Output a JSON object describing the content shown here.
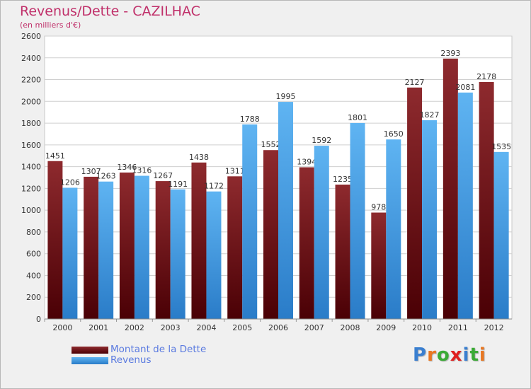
{
  "title": "Revenus/Dette - CAZILHAC",
  "subtitle": "(en milliers d'€)",
  "logo": {
    "text": "Proxiti",
    "letter_colors": [
      "#3a7fd0",
      "#e87722",
      "#3aaa35",
      "#e02020",
      "#3a7fd0",
      "#3aaa35",
      "#e87722"
    ]
  },
  "legend": {
    "debt_label": "Montant de la Dette",
    "revenue_label": "Revenus"
  },
  "chart_data": {
    "type": "bar",
    "title": "Revenus/Dette - CAZILHAC",
    "ylabel": "(en milliers d'€)",
    "xlabel": "",
    "categories": [
      "2000",
      "2001",
      "2002",
      "2003",
      "2004",
      "2005",
      "2006",
      "2007",
      "2008",
      "2009",
      "2010",
      "2011",
      "2012"
    ],
    "series": [
      {
        "name": "Montant de la Dette",
        "color": "#7a1a1e",
        "values": [
          1451,
          1307,
          1346,
          1267,
          1438,
          1311,
          1552,
          1394,
          1235,
          978,
          2127,
          2393,
          2178
        ]
      },
      {
        "name": "Revenus",
        "color": "#3d9be6",
        "values": [
          1206,
          1263,
          1316,
          1191,
          1172,
          1788,
          1995,
          1592,
          1801,
          1650,
          1827,
          2081,
          1535
        ]
      }
    ],
    "ylim": [
      0,
      2600
    ],
    "yticks": [
      0,
      200,
      400,
      600,
      800,
      1000,
      1200,
      1400,
      1600,
      1800,
      2000,
      2200,
      2400,
      2600
    ],
    "grid": true,
    "legend_position": "bottom-left"
  }
}
